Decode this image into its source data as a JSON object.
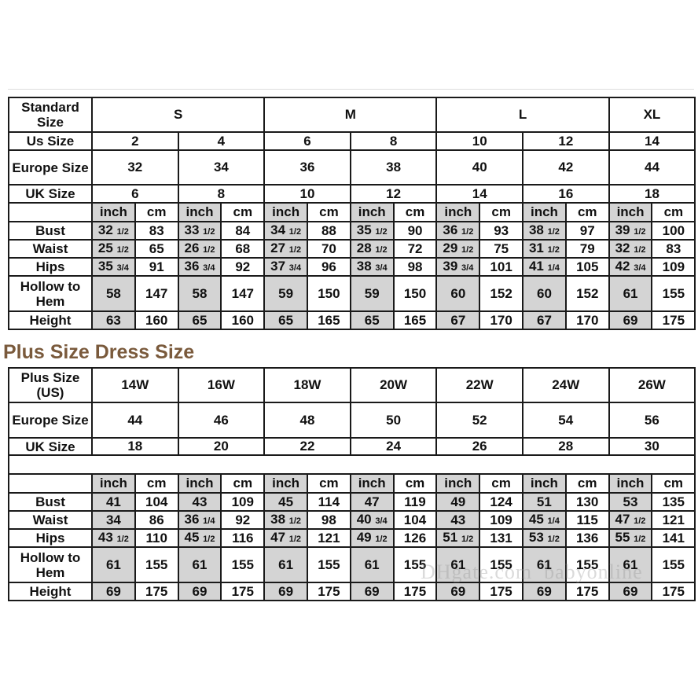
{
  "standard": {
    "header_label": "Standard Size",
    "groups": [
      {
        "label": "S",
        "span": 4
      },
      {
        "label": "M",
        "span": 4
      },
      {
        "label": "L",
        "span": 4
      },
      {
        "label": "XL",
        "span": 2
      }
    ],
    "us_label": "Us Size",
    "us": [
      "2",
      "4",
      "6",
      "8",
      "10",
      "12",
      "14"
    ],
    "europe_label": "Europe Size",
    "europe": [
      "32",
      "34",
      "36",
      "38",
      "40",
      "42",
      "44"
    ],
    "uk_label": "UK Size",
    "uk": [
      "6",
      "8",
      "10",
      "12",
      "14",
      "16",
      "18"
    ],
    "unit_inch": "inch",
    "unit_cm": "cm",
    "measurements": [
      {
        "label": "Bust",
        "values": [
          "32 1/2",
          "83",
          "33 1/2",
          "84",
          "34 1/2",
          "88",
          "35 1/2",
          "90",
          "36 1/2",
          "93",
          "38 1/2",
          "97",
          "39 1/2",
          "100"
        ]
      },
      {
        "label": "Waist",
        "values": [
          "25 1/2",
          "65",
          "26 1/2",
          "68",
          "27 1/2",
          "70",
          "28 1/2",
          "72",
          "29 1/2",
          "75",
          "31 1/2",
          "79",
          "32 1/2",
          "83"
        ]
      },
      {
        "label": "Hips",
        "values": [
          "35 3/4",
          "91",
          "36 3/4",
          "92",
          "37 3/4",
          "96",
          "38 3/4",
          "98",
          "39 3/4",
          "101",
          "41 1/4",
          "105",
          "42 3/4",
          "109"
        ]
      },
      {
        "label": "Hollow to Hem",
        "values": [
          "58",
          "147",
          "58",
          "147",
          "59",
          "150",
          "59",
          "150",
          "60",
          "152",
          "60",
          "152",
          "61",
          "155"
        ],
        "tall": true
      },
      {
        "label": "Height",
        "values": [
          "63",
          "160",
          "65",
          "160",
          "65",
          "165",
          "65",
          "165",
          "67",
          "170",
          "67",
          "170",
          "69",
          "175"
        ]
      }
    ]
  },
  "plus": {
    "title": "Plus Size Dress Size",
    "header_label": "Plus Size (US)",
    "sizes": [
      "14W",
      "16W",
      "18W",
      "20W",
      "22W",
      "24W",
      "26W"
    ],
    "europe_label": "Europe Size",
    "europe": [
      "44",
      "46",
      "48",
      "50",
      "52",
      "54",
      "56"
    ],
    "uk_label": "UK Size",
    "uk": [
      "18",
      "20",
      "22",
      "24",
      "26",
      "28",
      "30"
    ],
    "unit_inch": "inch",
    "unit_cm": "cm",
    "measurements": [
      {
        "label": "Bust",
        "values": [
          "41",
          "104",
          "43",
          "109",
          "45",
          "114",
          "47",
          "119",
          "49",
          "124",
          "51",
          "130",
          "53",
          "135"
        ]
      },
      {
        "label": "Waist",
        "values": [
          "34",
          "86",
          "36 1/4",
          "92",
          "38 1/2",
          "98",
          "40 3/4",
          "104",
          "43",
          "109",
          "45 1/4",
          "115",
          "47 1/2",
          "121"
        ]
      },
      {
        "label": "Hips",
        "values": [
          "43 1/2",
          "110",
          "45 1/2",
          "116",
          "47 1/2",
          "121",
          "49 1/2",
          "126",
          "51 1/2",
          "131",
          "53 1/2",
          "136",
          "55 1/2",
          "141"
        ]
      },
      {
        "label": "Hollow to Hem",
        "values": [
          "61",
          "155",
          "61",
          "155",
          "61",
          "155",
          "61",
          "155",
          "61",
          "155",
          "61",
          "155",
          "61",
          "155"
        ],
        "tall": true
      },
      {
        "label": "Height",
        "values": [
          "69",
          "175",
          "69",
          "175",
          "69",
          "175",
          "69",
          "175",
          "69",
          "175",
          "69",
          "175",
          "69",
          "175"
        ]
      }
    ]
  },
  "watermark": "DHgate.com babyonline",
  "colors": {
    "title": "#7a5a3c",
    "shaded": "#d4d4d4",
    "border": "#1a1a1a"
  }
}
